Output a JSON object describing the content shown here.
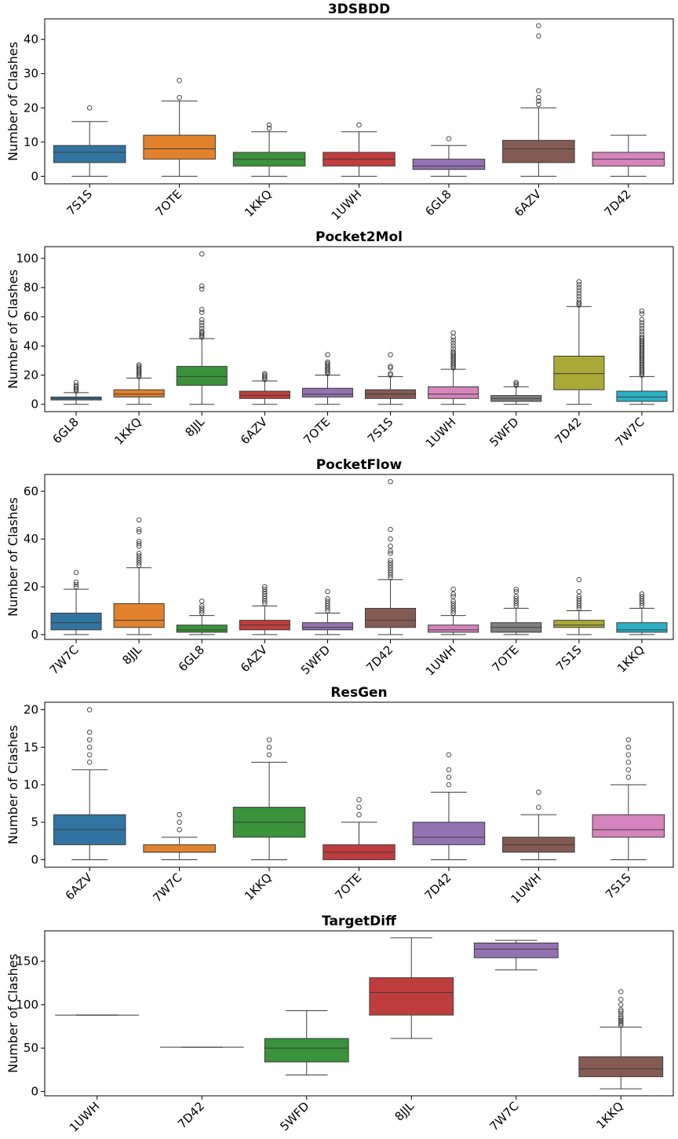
{
  "chart_data": [
    {
      "type": "boxplot",
      "title": "3DSBDD",
      "ylabel": "Number of Clashes",
      "ylim": [
        -2.2,
        46
      ],
      "yticks": [
        0,
        10,
        20,
        30,
        40
      ],
      "categories": [
        "7S1S",
        "7OTE",
        "1KKQ",
        "1UWH",
        "6GL8",
        "6AZV",
        "7D42"
      ],
      "colors": [
        "#3274a1",
        "#e1812c",
        "#3a923a",
        "#c03d3e",
        "#9372b2",
        "#845b53",
        "#d684bd"
      ],
      "boxes": [
        {
          "min": 0,
          "q1": 4,
          "median": 7,
          "q3": 9,
          "max": 16,
          "outliers": [
            20
          ]
        },
        {
          "min": 0,
          "q1": 5,
          "median": 8,
          "q3": 12,
          "max": 22,
          "outliers": [
            23,
            28
          ]
        },
        {
          "min": 0,
          "q1": 3,
          "median": 5,
          "q3": 7,
          "max": 13,
          "outliers": [
            14,
            15
          ]
        },
        {
          "min": 0,
          "q1": 3,
          "median": 5,
          "q3": 7,
          "max": 13,
          "outliers": [
            15
          ]
        },
        {
          "min": 0,
          "q1": 2,
          "median": 3,
          "q3": 5,
          "max": 9,
          "outliers": [
            11
          ]
        },
        {
          "min": 0,
          "q1": 4,
          "median": 8,
          "q3": 10.5,
          "max": 20,
          "outliers": [
            21,
            22,
            23,
            25,
            41,
            44
          ]
        },
        {
          "min": 0,
          "q1": 3,
          "median": 5,
          "q3": 7,
          "max": 12,
          "outliers": []
        }
      ]
    },
    {
      "type": "boxplot",
      "title": "Pocket2Mol",
      "ylabel": "Number of Clashes",
      "ylim": [
        -5,
        108
      ],
      "yticks": [
        0,
        20,
        40,
        60,
        80,
        100
      ],
      "categories": [
        "6GL8",
        "1KKQ",
        "8JJL",
        "6AZV",
        "7OTE",
        "7S1S",
        "1UWH",
        "5WFD",
        "7D42",
        "7W7C"
      ],
      "colors": [
        "#3274a1",
        "#e1812c",
        "#3a923a",
        "#c03d3e",
        "#9372b2",
        "#845b53",
        "#d684bd",
        "#7f7f7f",
        "#a9aa35",
        "#2ab0c5"
      ],
      "boxes": [
        {
          "min": 0,
          "q1": 3,
          "median": 4,
          "q3": 5,
          "max": 8,
          "outliers": [
            9,
            10,
            11,
            12,
            13,
            15
          ]
        },
        {
          "min": 0,
          "q1": 5,
          "median": 7,
          "q3": 10,
          "max": 18,
          "outliers": [
            19,
            20,
            21,
            22,
            23,
            24,
            25,
            26,
            27
          ]
        },
        {
          "min": 0,
          "q1": 13,
          "median": 19,
          "q3": 26,
          "max": 45,
          "outliers": [
            46,
            47,
            48,
            49,
            50,
            52,
            54,
            56,
            58,
            63,
            65,
            79,
            81,
            103
          ]
        },
        {
          "min": 0,
          "q1": 4,
          "median": 6,
          "q3": 9,
          "max": 16,
          "outliers": [
            17,
            18,
            19,
            20,
            21
          ]
        },
        {
          "min": 0,
          "q1": 5,
          "median": 7,
          "q3": 11,
          "max": 20,
          "outliers": [
            21,
            22,
            23,
            24,
            25,
            26,
            27,
            28,
            29,
            34
          ]
        },
        {
          "min": 0,
          "q1": 4,
          "median": 7,
          "q3": 10,
          "max": 19,
          "outliers": [
            20,
            21,
            25,
            26,
            34
          ]
        },
        {
          "min": 0,
          "q1": 4,
          "median": 7,
          "q3": 12,
          "max": 24,
          "outliers": [
            25,
            26,
            27,
            28,
            29,
            30,
            31,
            32,
            33,
            34,
            35,
            36,
            38,
            40,
            42,
            44,
            46,
            49
          ]
        },
        {
          "min": 0,
          "q1": 2,
          "median": 4,
          "q3": 6,
          "max": 12,
          "outliers": [
            13,
            14,
            15
          ]
        },
        {
          "min": 0,
          "q1": 10,
          "median": 21,
          "q3": 33,
          "max": 67,
          "outliers": [
            68,
            69,
            70,
            72,
            74,
            76,
            78,
            80,
            82,
            84
          ]
        },
        {
          "min": 0,
          "q1": 2,
          "median": 5,
          "q3": 9,
          "max": 19,
          "outliers": [
            20,
            21,
            22,
            23,
            24,
            25,
            26,
            27,
            28,
            29,
            30,
            31,
            32,
            33,
            34,
            35,
            36,
            37,
            38,
            39,
            40,
            41,
            42,
            43,
            44,
            45,
            46,
            48,
            50,
            52,
            54,
            56,
            58,
            62,
            64
          ]
        }
      ]
    },
    {
      "type": "boxplot",
      "title": "PocketFlow",
      "ylabel": "Number of Clashes",
      "ylim": [
        -2,
        67
      ],
      "yticks": [
        0,
        20,
        40,
        60
      ],
      "categories": [
        "7W7C",
        "8JJL",
        "6GL8",
        "6AZV",
        "5WFD",
        "7D42",
        "1UWH",
        "7OTE",
        "7S1S",
        "1KKQ"
      ],
      "colors": [
        "#3274a1",
        "#e1812c",
        "#3a923a",
        "#c03d3e",
        "#9372b2",
        "#845b53",
        "#d684bd",
        "#7f7f7f",
        "#a9aa35",
        "#2ab0c5"
      ],
      "boxes": [
        {
          "min": 0,
          "q1": 2,
          "median": 5,
          "q3": 9,
          "max": 19,
          "outliers": [
            20,
            21,
            22,
            26
          ]
        },
        {
          "min": 0,
          "q1": 3,
          "median": 6,
          "q3": 13,
          "max": 28,
          "outliers": [
            29,
            30,
            31,
            32,
            33,
            34,
            37,
            38,
            39,
            43,
            44,
            48
          ]
        },
        {
          "min": 0,
          "q1": 1,
          "median": 2,
          "q3": 4,
          "max": 8,
          "outliers": [
            9,
            10,
            11,
            12,
            14
          ]
        },
        {
          "min": 0,
          "q1": 2,
          "median": 4,
          "q3": 6,
          "max": 12,
          "outliers": [
            13,
            14,
            15,
            16,
            17,
            18,
            19,
            20
          ]
        },
        {
          "min": 0,
          "q1": 2,
          "median": 3,
          "q3": 5,
          "max": 9,
          "outliers": [
            10,
            11,
            12,
            13,
            14,
            15,
            18
          ]
        },
        {
          "min": 0,
          "q1": 3,
          "median": 6,
          "q3": 11,
          "max": 23,
          "outliers": [
            24,
            25,
            26,
            27,
            28,
            29,
            30,
            31,
            34,
            35,
            37,
            40,
            44,
            64
          ]
        },
        {
          "min": 0,
          "q1": 1,
          "median": 2,
          "q3": 4,
          "max": 8,
          "outliers": [
            9,
            10,
            11,
            12,
            13,
            14,
            16,
            17,
            19
          ]
        },
        {
          "min": 0,
          "q1": 1,
          "median": 3,
          "q3": 5,
          "max": 11,
          "outliers": [
            12,
            13,
            14,
            15,
            16,
            18,
            19
          ]
        },
        {
          "min": 0,
          "q1": 3,
          "median": 4,
          "q3": 6,
          "max": 10,
          "outliers": [
            11,
            12,
            13,
            14,
            15,
            16,
            18,
            23
          ]
        },
        {
          "min": 0,
          "q1": 1,
          "median": 2,
          "q3": 5,
          "max": 11,
          "outliers": [
            12,
            13,
            14,
            15,
            16,
            17
          ]
        }
      ]
    },
    {
      "type": "boxplot",
      "title": "ResGen",
      "ylabel": "Number of Clashes",
      "ylim": [
        -1,
        21
      ],
      "yticks": [
        0,
        5,
        10,
        15,
        20
      ],
      "ytick_labels": [
        "0",
        "5",
        "10",
        "15",
        "20"
      ],
      "categories": [
        "6AZV",
        "7W7C",
        "1KKQ",
        "7OTE",
        "7D42",
        "1UWH",
        "7S1S"
      ],
      "colors": [
        "#3274a1",
        "#e1812c",
        "#3a923a",
        "#c03d3e",
        "#9372b2",
        "#845b53",
        "#d684bd"
      ],
      "boxes": [
        {
          "min": 0,
          "q1": 2,
          "median": 4,
          "q3": 6,
          "max": 12,
          "outliers": [
            13,
            14,
            15,
            16,
            17,
            20
          ]
        },
        {
          "min": 0,
          "q1": 1,
          "median": 1,
          "q3": 2,
          "max": 3,
          "outliers": [
            4,
            5,
            6
          ]
        },
        {
          "min": 0,
          "q1": 3,
          "median": 5,
          "q3": 7,
          "max": 13,
          "outliers": [
            14,
            15,
            16
          ]
        },
        {
          "min": 0,
          "q1": 0,
          "median": 1,
          "q3": 2,
          "max": 5,
          "outliers": [
            6,
            7,
            8
          ]
        },
        {
          "min": 0,
          "q1": 2,
          "median": 3,
          "q3": 5,
          "max": 9,
          "outliers": [
            10,
            11,
            12,
            14
          ]
        },
        {
          "min": 0,
          "q1": 1,
          "median": 2,
          "q3": 3,
          "max": 6,
          "outliers": [
            7,
            9
          ]
        },
        {
          "min": 0,
          "q1": 3,
          "median": 4,
          "q3": 6,
          "max": 10,
          "outliers": [
            11,
            12,
            13,
            14,
            15,
            16
          ]
        }
      ]
    },
    {
      "type": "boxplot",
      "title": "TargetDiff",
      "ylabel": "Number of Clashes",
      "ylim": [
        -5,
        185
      ],
      "yticks": [
        0,
        50,
        100,
        150
      ],
      "categories": [
        "1UWH",
        "7D42",
        "5WFD",
        "8JJL",
        "7W7C",
        "1KKQ"
      ],
      "colors": [
        "#3274a1",
        "#e1812c",
        "#3a923a",
        "#c03d3e",
        "#9372b2",
        "#845b53"
      ],
      "boxes": [
        {
          "min": 88,
          "q1": 88,
          "median": 88,
          "q3": 88,
          "max": 88,
          "outliers": []
        },
        {
          "min": 51,
          "q1": 51,
          "median": 51,
          "q3": 51,
          "max": 51,
          "outliers": []
        },
        {
          "min": 19,
          "q1": 34,
          "median": 50,
          "q3": 61,
          "max": 93,
          "outliers": []
        },
        {
          "min": 61,
          "q1": 88,
          "median": 114,
          "q3": 131,
          "max": 177,
          "outliers": []
        },
        {
          "min": 140,
          "q1": 154,
          "median": 164,
          "q3": 171,
          "max": 174,
          "outliers": []
        },
        {
          "min": 3,
          "q1": 17,
          "median": 26,
          "q3": 40,
          "max": 74,
          "outliers": [
            76,
            78,
            80,
            82,
            84,
            86,
            89,
            92,
            94,
            100,
            106,
            115
          ]
        }
      ]
    }
  ]
}
